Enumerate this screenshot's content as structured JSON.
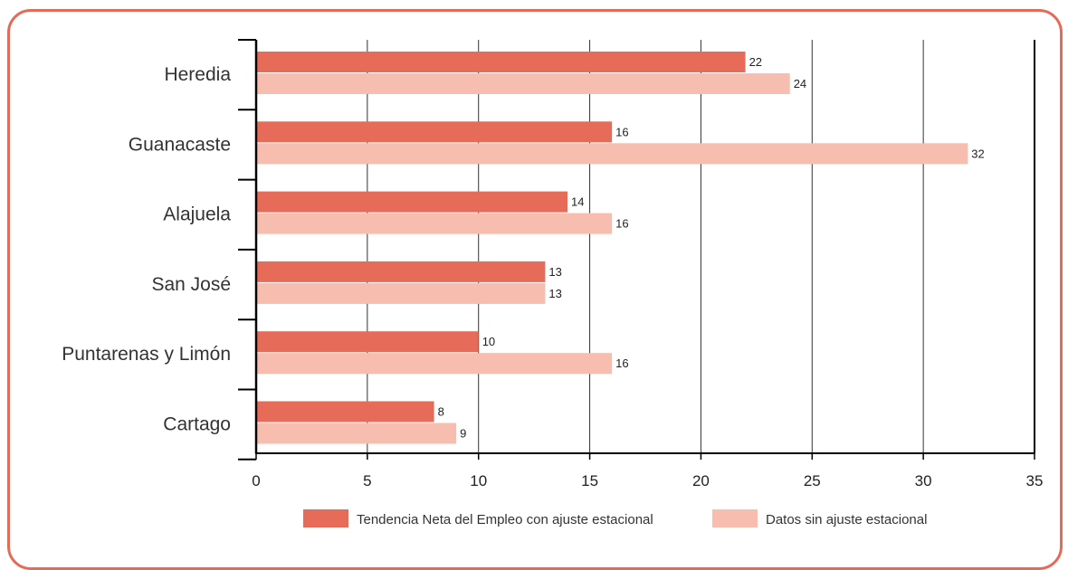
{
  "chart_data": {
    "type": "bar",
    "orientation": "horizontal",
    "categories": [
      "Heredia",
      "Guanacaste",
      "Alajuela",
      "San José",
      "Puntarenas y Limón",
      "Cartago"
    ],
    "series": [
      {
        "name": "Tendencia Neta del Empleo con ajuste estacional",
        "values": [
          22,
          16,
          14,
          13,
          10,
          8
        ],
        "color": "#E76B59"
      },
      {
        "name": "Datos sin ajuste estacional",
        "values": [
          24,
          32,
          16,
          13,
          16,
          9
        ],
        "color": "#F7BDAE"
      }
    ],
    "xlim": [
      0,
      35
    ],
    "xticks": [
      "0",
      "5",
      "10",
      "15",
      "20",
      "25",
      "30",
      "35"
    ],
    "grid": "vertical",
    "legend": "bottom"
  },
  "frame_color": "#E66A57"
}
